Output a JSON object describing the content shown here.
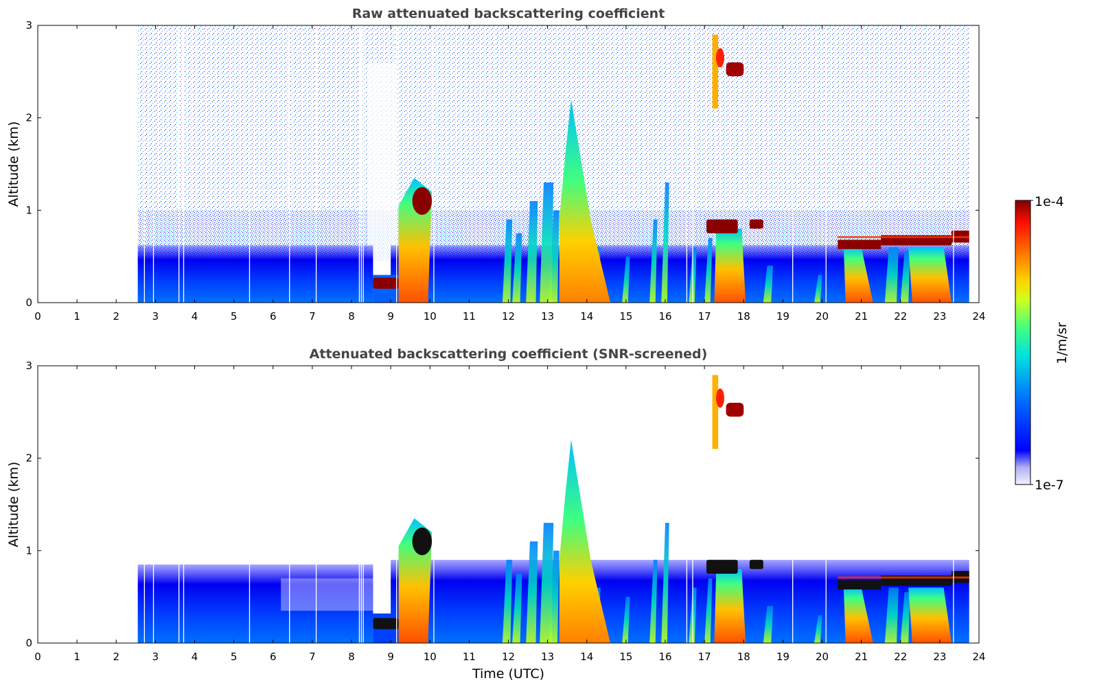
{
  "chart_data": [
    {
      "type": "heatmap",
      "title": "Raw attenuated backscattering coefficient",
      "xlabel": "",
      "ylabel": "Altitude (km)",
      "xlim": [
        0,
        24
      ],
      "ylim": [
        0,
        3
      ],
      "xticks": [
        "0",
        "1",
        "2",
        "3",
        "4",
        "5",
        "6",
        "7",
        "8",
        "9",
        "10",
        "11",
        "12",
        "13",
        "14",
        "15",
        "16",
        "17",
        "18",
        "19",
        "20",
        "21",
        "22",
        "23",
        "24"
      ],
      "yticks": [
        "0",
        "1",
        "2",
        "3"
      ],
      "data_start_hour": 2.55,
      "data_end_hour": 23.75,
      "features": [
        {
          "name": "boundary-layer-aerosol",
          "t0": 2.55,
          "t1": 23.75,
          "z0": 0.0,
          "z1": 0.6,
          "level": "low"
        },
        {
          "name": "low-cloud-base",
          "t0": 8.55,
          "t1": 9.2,
          "z0": 0.15,
          "z1": 0.27,
          "level": "max"
        },
        {
          "name": "precip-shaft-1",
          "t0": 9.2,
          "t1": 10.05,
          "z0": 0.0,
          "z1": 1.35,
          "level": "high"
        },
        {
          "name": "cloud-top-1",
          "t0": 9.55,
          "t1": 10.05,
          "z0": 0.95,
          "z1": 1.25,
          "level": "max"
        },
        {
          "name": "convective-plume",
          "t0": 13.3,
          "t1": 14.6,
          "z0": 0.0,
          "z1": 2.2,
          "level": "high"
        },
        {
          "name": "cloud-layer-17h",
          "t0": 17.05,
          "t1": 17.8,
          "z0": 0.75,
          "z1": 0.9,
          "level": "max"
        },
        {
          "name": "cirrus-patch",
          "t0": 17.2,
          "t1": 18.0,
          "z0": 2.45,
          "z1": 2.6,
          "level": "max"
        },
        {
          "name": "stratocumulus-deck",
          "t0": 20.4,
          "t1": 23.75,
          "z0": 0.58,
          "z1": 0.75,
          "level": "max"
        }
      ]
    },
    {
      "type": "heatmap",
      "title": "Attenuated backscattering coefficient (SNR-screened)",
      "xlabel": "Time (UTC)",
      "ylabel": "Altitude (km)",
      "xlim": [
        0,
        24
      ],
      "ylim": [
        0,
        3
      ],
      "xticks": [
        "0",
        "1",
        "2",
        "3",
        "4",
        "5",
        "6",
        "7",
        "8",
        "9",
        "10",
        "11",
        "12",
        "13",
        "14",
        "15",
        "16",
        "17",
        "18",
        "19",
        "20",
        "21",
        "22",
        "23",
        "24"
      ],
      "yticks": [
        "0",
        "1",
        "2",
        "3"
      ],
      "data_start_hour": 2.55,
      "data_end_hour": 23.75,
      "features": [
        {
          "name": "screened-aerosol-layer",
          "t0": 2.55,
          "t1": 23.75,
          "z0": 0.0,
          "z1": 0.85,
          "level": "low"
        },
        {
          "name": "low-cloud-base",
          "t0": 8.55,
          "t1": 9.2,
          "z0": 0.15,
          "z1": 0.27,
          "level": "saturated"
        },
        {
          "name": "precip-shaft-1",
          "t0": 9.2,
          "t1": 10.05,
          "z0": 0.0,
          "z1": 1.35,
          "level": "high"
        },
        {
          "name": "convective-plume",
          "t0": 13.3,
          "t1": 14.6,
          "z0": 0.0,
          "z1": 2.2,
          "level": "high"
        },
        {
          "name": "cirrus-patch",
          "t0": 17.2,
          "t1": 18.0,
          "z0": 2.45,
          "z1": 2.6,
          "level": "max"
        },
        {
          "name": "stratocumulus-deck",
          "t0": 20.4,
          "t1": 23.75,
          "z0": 0.58,
          "z1": 0.75,
          "level": "saturated"
        }
      ]
    }
  ],
  "colorbar": {
    "label": "1/m/sr",
    "max_label": "1e-4",
    "min_label": "1e-7",
    "colors": [
      "#f2f2ff",
      "#c8c8f5",
      "#8080ec",
      "#0000ff",
      "#0050ff",
      "#00a0ff",
      "#00e0e0",
      "#40ff80",
      "#c0ff20",
      "#ffd000",
      "#ff7000",
      "#ff1000",
      "#c00000",
      "#800000"
    ]
  }
}
